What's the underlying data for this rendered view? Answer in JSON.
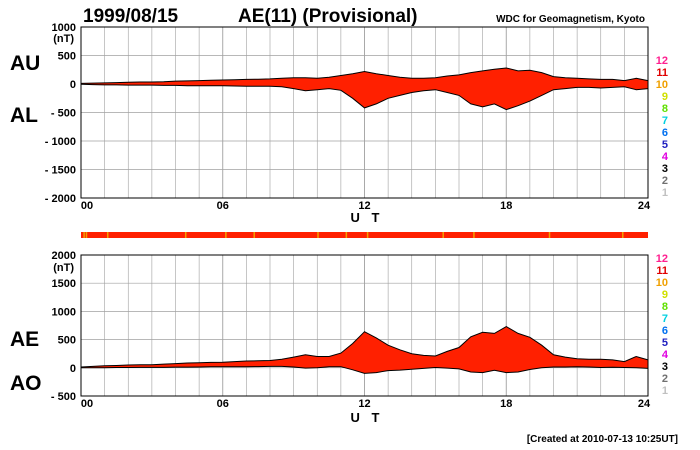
{
  "header": {
    "date": "1999/08/15",
    "title": "AE(11) (Provisional)",
    "source": "WDC for Geomagnetism, Kyoto",
    "created": "[Created at 2010-07-13 10:25UT]"
  },
  "colors": {
    "fill": "#ff2000",
    "outline": "#000000",
    "grid": "#a0a0a0",
    "status_strip": "#ff2000",
    "status_marks": "#f0a000"
  },
  "legend": [
    {
      "label": "12",
      "color": "#ff2090"
    },
    {
      "label": "11",
      "color": "#e00000"
    },
    {
      "label": "10",
      "color": "#f0a000"
    },
    {
      "label": "9",
      "color": "#d0e000"
    },
    {
      "label": "8",
      "color": "#60e000"
    },
    {
      "label": "7",
      "color": "#00d0e0"
    },
    {
      "label": "6",
      "color": "#0070f0"
    },
    {
      "label": "5",
      "color": "#2020c0"
    },
    {
      "label": "4",
      "color": "#e000e0"
    },
    {
      "label": "3",
      "color": "#000000"
    },
    {
      "label": "2",
      "color": "#707070"
    },
    {
      "label": "1",
      "color": "#c0c0c0"
    }
  ],
  "status_marks_hours": [
    0.1,
    0.2,
    1.1,
    4.4,
    6.1,
    7.3,
    10.0,
    11.2,
    12.1,
    15.3,
    16.6,
    19.8,
    22.9
  ],
  "chart_data": [
    {
      "type": "area",
      "panel": "upper",
      "unit_label": "(nT)",
      "side_labels": [
        "AU",
        "AL"
      ],
      "xlabel": "U T",
      "xlim": [
        0,
        24
      ],
      "ylim": [
        -2000,
        1000
      ],
      "x_ticks": [
        "00",
        "06",
        "12",
        "18",
        "24"
      ],
      "y_ticks": [
        {
          "v": 1000,
          "label": "1000"
        },
        {
          "v": 500,
          "label": "500"
        },
        {
          "v": 0,
          "label": "0"
        },
        {
          "v": -500,
          "label": "- 500"
        },
        {
          "v": -1000,
          "label": "- 1000"
        },
        {
          "v": -1500,
          "label": "- 1500"
        },
        {
          "v": -2000,
          "label": "- 2000"
        }
      ],
      "x": [
        0,
        0.5,
        1,
        1.5,
        2,
        2.5,
        3,
        3.5,
        4,
        4.5,
        5,
        5.5,
        6,
        6.5,
        7,
        7.5,
        8,
        8.5,
        9,
        9.5,
        10,
        10.5,
        11,
        11.5,
        12,
        12.5,
        13,
        13.5,
        14,
        14.5,
        15,
        15.5,
        16,
        16.5,
        17,
        17.5,
        18,
        18.5,
        19,
        19.5,
        20,
        20.5,
        21,
        21.5,
        22,
        22.5,
        23,
        23.5,
        24
      ],
      "series": [
        {
          "name": "AU",
          "values": [
            10,
            15,
            20,
            25,
            30,
            35,
            35,
            40,
            50,
            55,
            60,
            65,
            70,
            75,
            80,
            85,
            90,
            100,
            110,
            110,
            100,
            120,
            150,
            180,
            220,
            180,
            150,
            120,
            100,
            100,
            110,
            140,
            160,
            200,
            230,
            260,
            280,
            230,
            240,
            200,
            130,
            110,
            100,
            90,
            80,
            80,
            60,
            100,
            60
          ]
        },
        {
          "name": "AL",
          "values": [
            -5,
            -10,
            -15,
            -15,
            -20,
            -20,
            -20,
            -25,
            -25,
            -30,
            -30,
            -30,
            -30,
            -35,
            -40,
            -40,
            -40,
            -50,
            -80,
            -120,
            -100,
            -80,
            -110,
            -250,
            -420,
            -350,
            -250,
            -200,
            -150,
            -120,
            -100,
            -150,
            -200,
            -350,
            -400,
            -350,
            -450,
            -380,
            -300,
            -200,
            -100,
            -80,
            -60,
            -60,
            -70,
            -60,
            -50,
            -100,
            -80
          ]
        }
      ]
    },
    {
      "type": "area",
      "panel": "lower",
      "unit_label": "(nT)",
      "side_labels": [
        "AE",
        "AO"
      ],
      "xlabel": "U T",
      "xlim": [
        0,
        24
      ],
      "ylim": [
        -500,
        2000
      ],
      "x_ticks": [
        "00",
        "06",
        "12",
        "18",
        "24"
      ],
      "y_ticks": [
        {
          "v": 2000,
          "label": "2000"
        },
        {
          "v": 1500,
          "label": "1500"
        },
        {
          "v": 1000,
          "label": "1000"
        },
        {
          "v": 500,
          "label": "500"
        },
        {
          "v": 0,
          "label": "0"
        },
        {
          "v": -500,
          "label": "- 500"
        }
      ],
      "x": [
        0,
        0.5,
        1,
        1.5,
        2,
        2.5,
        3,
        3.5,
        4,
        4.5,
        5,
        5.5,
        6,
        6.5,
        7,
        7.5,
        8,
        8.5,
        9,
        9.5,
        10,
        10.5,
        11,
        11.5,
        12,
        12.5,
        13,
        13.5,
        14,
        14.5,
        15,
        15.5,
        16,
        16.5,
        17,
        17.5,
        18,
        18.5,
        19,
        19.5,
        20,
        20.5,
        21,
        21.5,
        22,
        22.5,
        23,
        23.5,
        24
      ],
      "series": [
        {
          "name": "AE",
          "values": [
            15,
            25,
            35,
            40,
            50,
            55,
            55,
            65,
            75,
            85,
            90,
            95,
            100,
            110,
            120,
            125,
            130,
            150,
            190,
            230,
            200,
            200,
            260,
            430,
            640,
            530,
            400,
            320,
            250,
            220,
            210,
            290,
            360,
            550,
            630,
            610,
            730,
            610,
            540,
            400,
            230,
            190,
            160,
            150,
            150,
            140,
            110,
            200,
            140
          ]
        },
        {
          "name": "AO",
          "values": [
            2,
            2,
            2,
            5,
            5,
            7,
            7,
            7,
            12,
            12,
            15,
            17,
            20,
            20,
            20,
            22,
            25,
            25,
            15,
            -5,
            0,
            20,
            20,
            -35,
            -100,
            -85,
            -50,
            -40,
            -25,
            -10,
            5,
            -5,
            -20,
            -75,
            -85,
            -45,
            -85,
            -75,
            -30,
            0,
            15,
            15,
            20,
            15,
            5,
            10,
            5,
            0,
            -10
          ]
        }
      ]
    }
  ]
}
